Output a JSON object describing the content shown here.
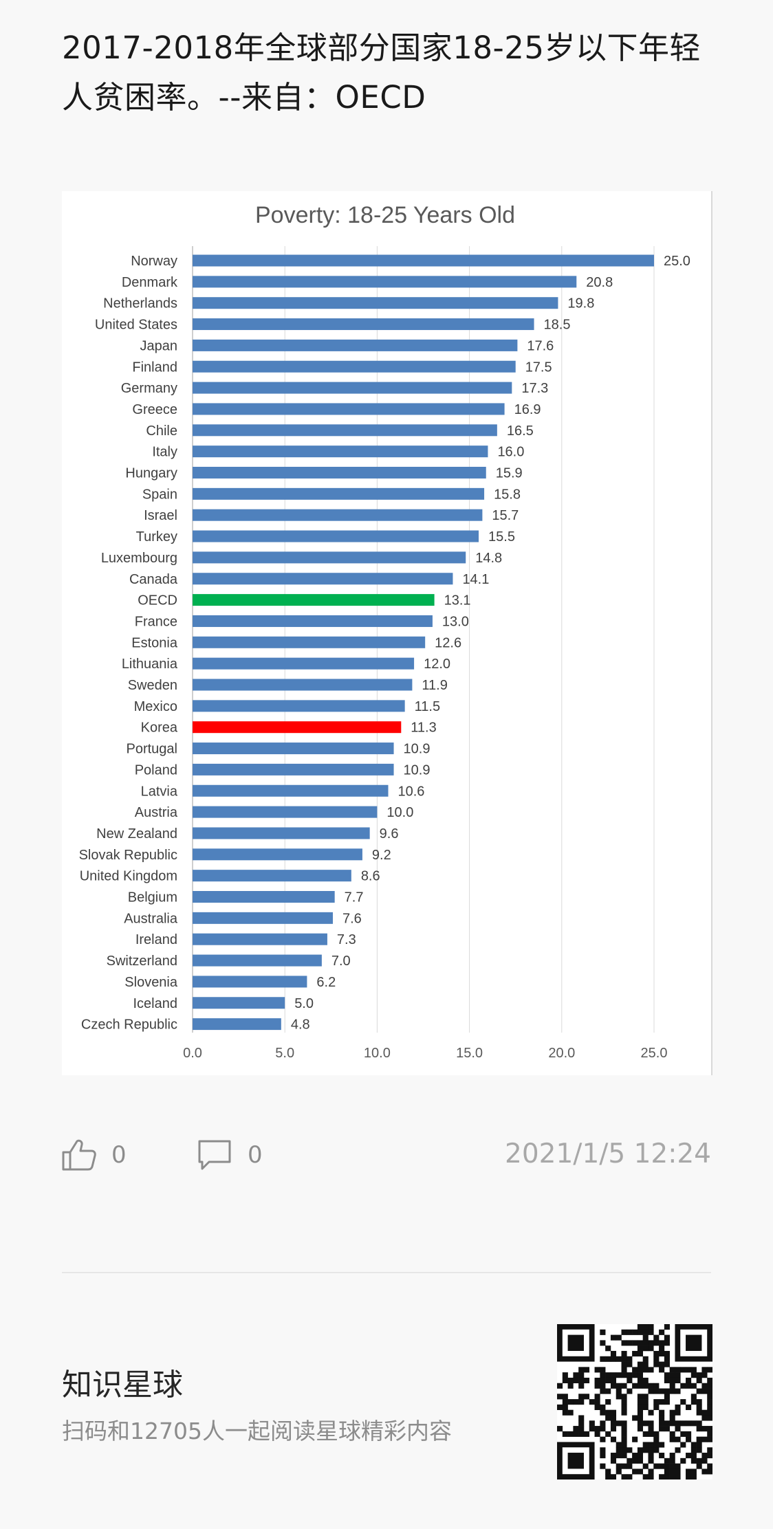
{
  "post": {
    "title": "2017-2018年全球部分国家18-25岁以下年轻人贫困率。--来自：OECD",
    "likes": "0",
    "comments": "0",
    "timestamp": "2021/1/5 12:24"
  },
  "planet": {
    "name": "知识星球",
    "subtitle": "扫码和12705人一起阅读星球精彩内容"
  },
  "colors": {
    "bar": "#4f81bd",
    "oecd": "#00b050",
    "korea": "#ff0000"
  },
  "chart_data": {
    "type": "bar",
    "orientation": "horizontal",
    "title": "Poverty: 18-25 Years Old",
    "xlabel": "",
    "ylabel": "",
    "xlim": [
      0,
      25
    ],
    "xticks": [
      "0.0",
      "5.0",
      "10.0",
      "15.0",
      "20.0",
      "25.0"
    ],
    "grid": true,
    "legend": "none",
    "highlight": {
      "OECD": "#00b050",
      "Korea": "#ff0000"
    },
    "categories": [
      "Norway",
      "Denmark",
      "Netherlands",
      "United States",
      "Japan",
      "Finland",
      "Germany",
      "Greece",
      "Chile",
      "Italy",
      "Hungary",
      "Spain",
      "Israel",
      "Turkey",
      "Luxembourg",
      "Canada",
      "OECD",
      "France",
      "Estonia",
      "Lithuania",
      "Sweden",
      "Mexico",
      "Korea",
      "Portugal",
      "Poland",
      "Latvia",
      "Austria",
      "New Zealand",
      "Slovak Republic",
      "United Kingdom",
      "Belgium",
      "Australia",
      "Ireland",
      "Switzerland",
      "Slovenia",
      "Iceland",
      "Czech Republic"
    ],
    "values": [
      25.0,
      20.8,
      19.8,
      18.5,
      17.6,
      17.5,
      17.3,
      16.9,
      16.5,
      16.0,
      15.9,
      15.8,
      15.7,
      15.5,
      14.8,
      14.1,
      13.1,
      13.0,
      12.6,
      12.0,
      11.9,
      11.5,
      11.3,
      10.9,
      10.9,
      10.6,
      10.0,
      9.6,
      9.2,
      8.6,
      7.7,
      7.6,
      7.3,
      7.0,
      6.2,
      5.0,
      4.8
    ],
    "value_labels": [
      "25.0",
      "20.8",
      "19.8",
      "18.5",
      "17.6",
      "17.5",
      "17.3",
      "16.9",
      "16.5",
      "16.0",
      "15.9",
      "15.8",
      "15.7",
      "15.5",
      "14.8",
      "14.1",
      "13.1",
      "13.0",
      "12.6",
      "12.0",
      "11.9",
      "11.5",
      "11.3",
      "10.9",
      "10.9",
      "10.6",
      "10.0",
      "9.6",
      "9.2",
      "8.6",
      "7.7",
      "7.6",
      "7.3",
      "7.0",
      "6.2",
      "5.0",
      "4.8"
    ]
  }
}
